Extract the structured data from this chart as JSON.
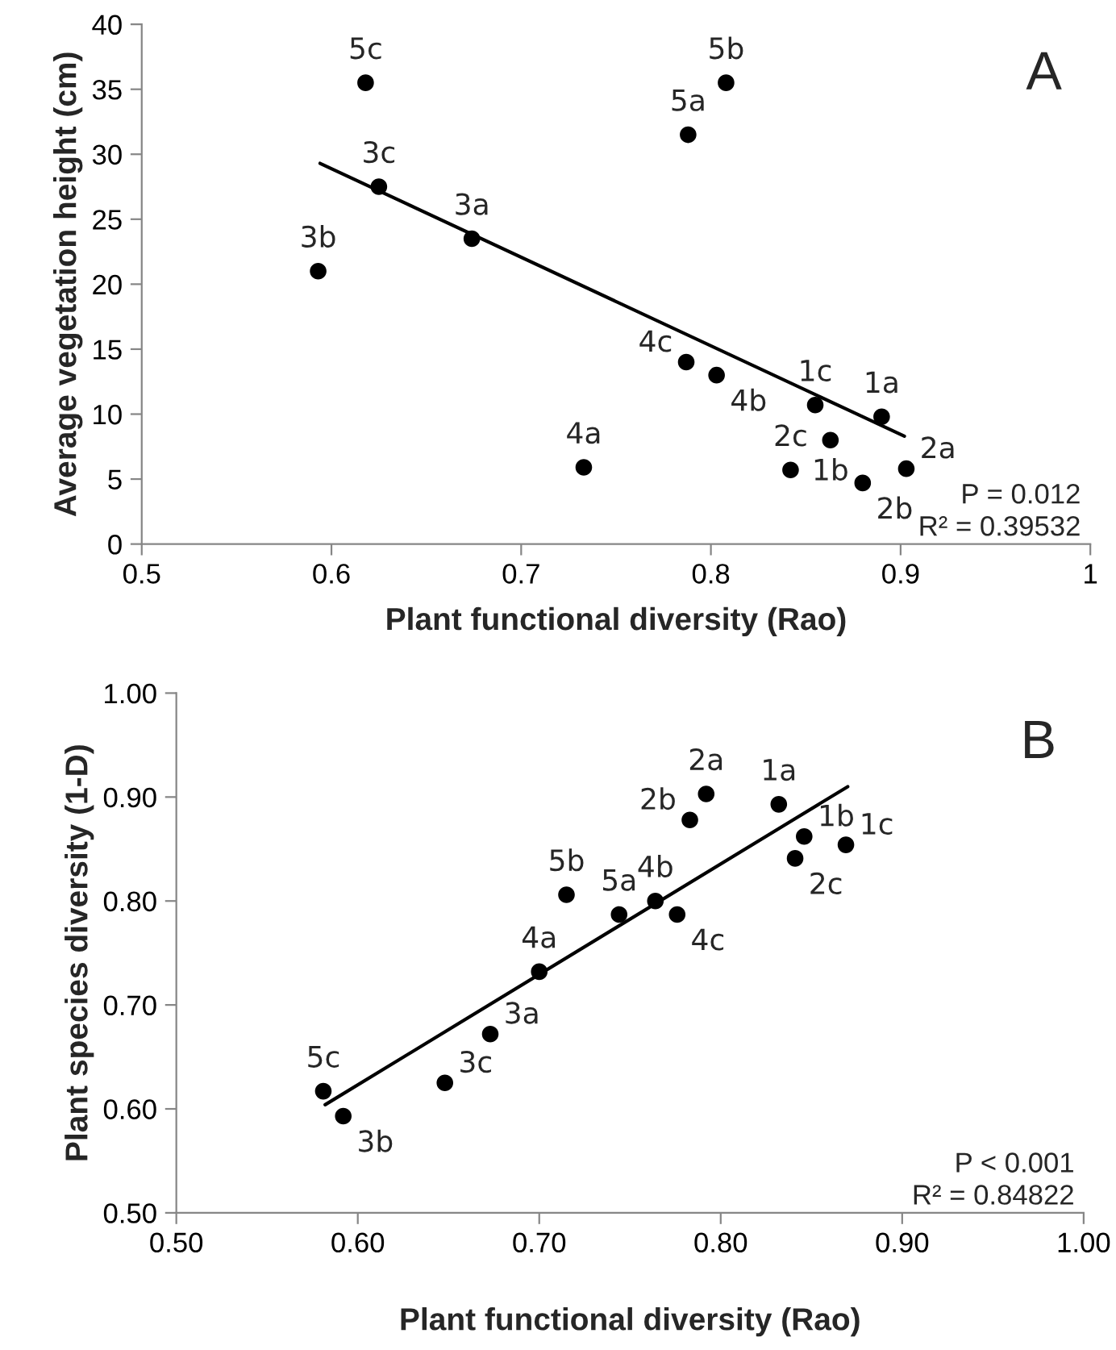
{
  "chart_data": [
    {
      "type": "scatter",
      "xlabel": "Plant functional diversity (Rao)",
      "ylabel": "Average vegetation height (cm)",
      "xlim": [
        0.5,
        1
      ],
      "ylim": [
        0,
        40
      ],
      "xticks": [
        0.5,
        0.6,
        0.7,
        0.8,
        0.9,
        1
      ],
      "yticks": [
        0,
        5,
        10,
        15,
        20,
        25,
        30,
        35,
        40
      ],
      "grid": false,
      "marker": "circle",
      "series": [
        {
          "type": "scatter",
          "color": "#000000",
          "x": [
            0.618,
            0.808,
            0.788,
            0.625,
            0.674,
            0.593,
            0.787,
            0.803,
            0.855,
            0.89,
            0.863,
            0.842,
            0.88,
            0.903,
            0.733
          ],
          "values": [
            35.5,
            35.5,
            31.5,
            27.5,
            23.5,
            21.0,
            14.0,
            13.0,
            10.7,
            9.8,
            8.0,
            5.7,
            4.7,
            5.8,
            5.9
          ]
        },
        {
          "type": "line",
          "color": "#000000",
          "marker": "none",
          "x": [
            0.594,
            0.902
          ],
          "values": [
            29.3,
            8.3
          ]
        }
      ],
      "annotations": [
        "A",
        "P = 0.012",
        "R² = 0.39532",
        {
          "text": "5c",
          "x": 0.618,
          "y": 35.5
        },
        {
          "text": "5b",
          "x": 0.808,
          "y": 35.5
        },
        {
          "text": "5a",
          "x": 0.788,
          "y": 31.5
        },
        {
          "text": "3c",
          "x": 0.625,
          "y": 27.5
        },
        {
          "text": "3a",
          "x": 0.674,
          "y": 23.5
        },
        {
          "text": "3b",
          "x": 0.593,
          "y": 21.0
        },
        {
          "text": "4c",
          "x": 0.787,
          "y": 14.0
        },
        {
          "text": "4b",
          "x": 0.803,
          "y": 13.0
        },
        {
          "text": "1c",
          "x": 0.855,
          "y": 10.7
        },
        {
          "text": "1a",
          "x": 0.89,
          "y": 9.8
        },
        {
          "text": "1b",
          "x": 0.863,
          "y": 8.0
        },
        {
          "text": "2c",
          "x": 0.842,
          "y": 5.7
        },
        {
          "text": "2b",
          "x": 0.88,
          "y": 4.7
        },
        {
          "text": "2a",
          "x": 0.903,
          "y": 5.8
        },
        {
          "text": "4a",
          "x": 0.733,
          "y": 5.9
        }
      ]
    },
    {
      "type": "scatter",
      "xlabel": "Plant functional diversity (Rao)",
      "ylabel": "Plant species diversity (1-D)",
      "xlim": [
        0.5,
        1.0
      ],
      "ylim": [
        0.5,
        1.0
      ],
      "xticks": [
        {
          "value": 0.5,
          "label": "0.50"
        },
        {
          "value": 0.6,
          "label": "0.60"
        },
        {
          "value": 0.7,
          "label": "0.70"
        },
        {
          "value": 0.8,
          "label": "0.80"
        },
        {
          "value": 0.9,
          "label": "0.90"
        },
        {
          "value": 1.0,
          "label": "1.00"
        }
      ],
      "yticks": [
        {
          "value": 0.5,
          "label": "0.50"
        },
        {
          "value": 0.6,
          "label": "0.60"
        },
        {
          "value": 0.7,
          "label": "0.70"
        },
        {
          "value": 0.8,
          "label": "0.80"
        },
        {
          "value": 0.9,
          "label": "0.90"
        },
        {
          "value": 1.0,
          "label": "1.00"
        }
      ],
      "grid": false,
      "marker": "circle",
      "series": [
        {
          "type": "scatter",
          "color": "#000000",
          "x": [
            0.792,
            0.783,
            0.832,
            0.846,
            0.841,
            0.869,
            0.715,
            0.744,
            0.764,
            0.776,
            0.7,
            0.673,
            0.648,
            0.581,
            0.592
          ],
          "values": [
            0.903,
            0.878,
            0.893,
            0.862,
            0.841,
            0.854,
            0.806,
            0.787,
            0.8,
            0.787,
            0.732,
            0.672,
            0.625,
            0.617,
            0.593
          ]
        },
        {
          "type": "line",
          "color": "#000000",
          "marker": "none",
          "x": [
            0.582,
            0.87
          ],
          "values": [
            0.604,
            0.91
          ]
        }
      ],
      "annotations": [
        "B",
        "P < 0.001",
        "R² = 0.84822",
        {
          "text": "2a",
          "x": 0.792,
          "y": 0.903
        },
        {
          "text": "2b",
          "x": 0.783,
          "y": 0.878
        },
        {
          "text": "1a",
          "x": 0.832,
          "y": 0.893
        },
        {
          "text": "1b",
          "x": 0.846,
          "y": 0.862
        },
        {
          "text": "2c",
          "x": 0.841,
          "y": 0.841
        },
        {
          "text": "1c",
          "x": 0.869,
          "y": 0.854
        },
        {
          "text": "5b",
          "x": 0.715,
          "y": 0.806
        },
        {
          "text": "5a",
          "x": 0.744,
          "y": 0.787
        },
        {
          "text": "4b",
          "x": 0.764,
          "y": 0.8
        },
        {
          "text": "4c",
          "x": 0.776,
          "y": 0.787
        },
        {
          "text": "4a",
          "x": 0.7,
          "y": 0.732
        },
        {
          "text": "3a",
          "x": 0.673,
          "y": 0.672
        },
        {
          "text": "3c",
          "x": 0.648,
          "y": 0.625
        },
        {
          "text": "5c",
          "x": 0.581,
          "y": 0.617
        },
        {
          "text": "3b",
          "x": 0.592,
          "y": 0.593
        }
      ]
    }
  ]
}
